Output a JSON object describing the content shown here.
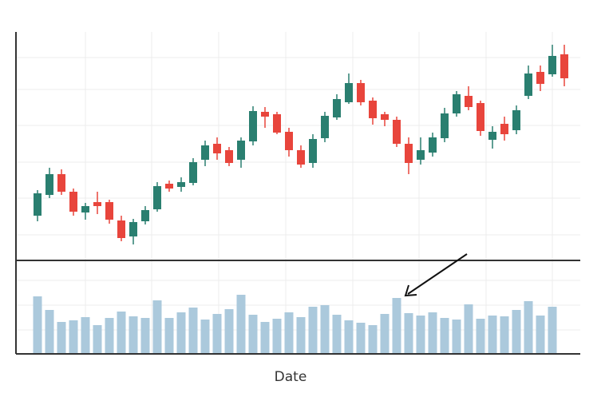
{
  "chart_data": {
    "type": "candlestick",
    "xlabel": "Date",
    "up_color": "#2a7f70",
    "down_color": "#e8453c",
    "volume_color": "#abc9dc",
    "open": [
      60,
      86,
      112,
      90,
      64,
      77,
      77,
      54,
      34,
      53,
      68,
      100,
      96,
      101,
      130,
      150,
      142,
      130,
      153,
      190,
      187,
      165,
      142,
      126,
      157,
      183,
      202,
      226,
      204,
      187,
      180,
      150,
      130,
      139,
      157,
      188,
      210,
      201,
      155,
      175,
      167,
      210,
      240,
      237,
      262
    ],
    "close": [
      88,
      112,
      90,
      65,
      72,
      72,
      55,
      32,
      52,
      67,
      97,
      94,
      102,
      127,
      148,
      138,
      126,
      154,
      191,
      184,
      164,
      142,
      124,
      156,
      185,
      206,
      226,
      202,
      182,
      180,
      150,
      126,
      142,
      158,
      188,
      212,
      196,
      166,
      165,
      162,
      192,
      238,
      225,
      260,
      232
    ],
    "high": [
      92,
      120,
      118,
      94,
      76,
      90,
      80,
      60,
      56,
      72,
      102,
      104,
      108,
      132,
      154,
      158,
      146,
      158,
      197,
      196,
      190,
      170,
      148,
      162,
      190,
      212,
      238,
      230,
      208,
      190,
      184,
      158,
      158,
      164,
      195,
      216,
      222,
      204,
      172,
      184,
      198,
      248,
      248,
      274,
      274
    ],
    "low": [
      53,
      82,
      86,
      60,
      55,
      62,
      50,
      28,
      24,
      49,
      65,
      90,
      90,
      98,
      122,
      130,
      122,
      120,
      148,
      170,
      162,
      134,
      120,
      120,
      152,
      180,
      200,
      198,
      174,
      172,
      146,
      112,
      124,
      134,
      152,
      184,
      192,
      160,
      144,
      154,
      162,
      206,
      216,
      234,
      222
    ],
    "ylim": [
      4,
      290
    ],
    "volume": [
      72,
      55,
      40,
      42,
      46,
      36,
      45,
      53,
      47,
      45,
      67,
      45,
      52,
      58,
      43,
      50,
      56,
      74,
      49,
      40,
      44,
      52,
      46,
      59,
      61,
      49,
      42,
      39,
      36,
      50,
      70,
      51,
      48,
      52,
      45,
      43,
      62,
      44,
      48,
      47,
      55,
      66,
      48,
      59,
      null
    ],
    "volume_ylim": [
      0,
      110
    ]
  }
}
